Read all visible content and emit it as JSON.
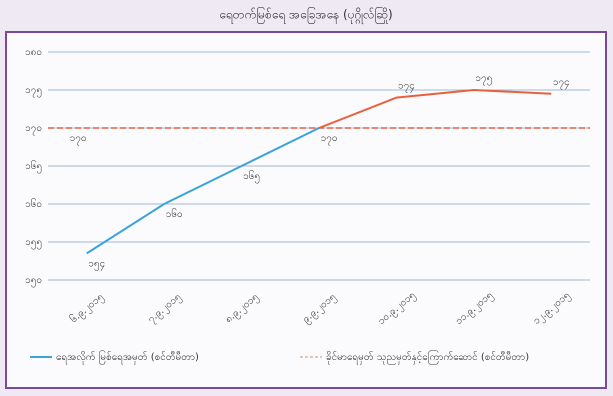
{
  "chart_data": {
    "type": "line",
    "title": "ရေတက်မြစ်ရေ အခြေအနေ (ပုဂ္ဂိုလ်ဆြို)",
    "categories": [
      "၆.၉.၂၀၁၅",
      "၇.၉.၂၀၁၅",
      "၈.၉.၂၀၁၅",
      "၉.၉.၂၀၁၅",
      "၁၀.၉.၂၀၁၅",
      "၁၁.၉.၂၀၁၅",
      "၁၂.၉.၂၀၁၅"
    ],
    "series": [
      {
        "name": "ရေအလိုက် မြစ်ရေအမှတ် (စင်တီမီတာ)",
        "color": "#3aa3dc",
        "values": [
          153.5,
          160,
          165,
          170,
          null,
          null,
          null
        ],
        "value_labels": [
          "၁၅၄",
          "၁၆၀",
          "၁၆၅",
          "၁၇၀",
          null,
          null,
          null
        ]
      },
      {
        "name": "ခိုင်မာရေမှတ် သုညမှတ်နှင့်ကြောက်ဆောင် (စင်တီမီတာ)",
        "color": "#e8603c",
        "values": [
          null,
          null,
          null,
          170,
          174,
          175,
          174.5
        ],
        "value_labels": [
          null,
          null,
          null,
          null,
          "၁၇၄",
          "၁၇၅",
          "၁၇၄"
        ]
      }
    ],
    "reference_line": {
      "value": 170,
      "label": "၁၇၀",
      "color": "#e8603c"
    },
    "ylim": [
      150,
      180
    ],
    "yticks": [
      {
        "value": 150,
        "label": "၁၅၀"
      },
      {
        "value": 155,
        "label": "၁၅၅"
      },
      {
        "value": 160,
        "label": "၁၆၀"
      },
      {
        "value": 165,
        "label": "၁၆၅"
      },
      {
        "value": 170,
        "label": "၁၇၀"
      },
      {
        "value": 175,
        "label": "၁၇၅"
      },
      {
        "value": 180,
        "label": "၁၈၀"
      }
    ],
    "grid": true
  }
}
